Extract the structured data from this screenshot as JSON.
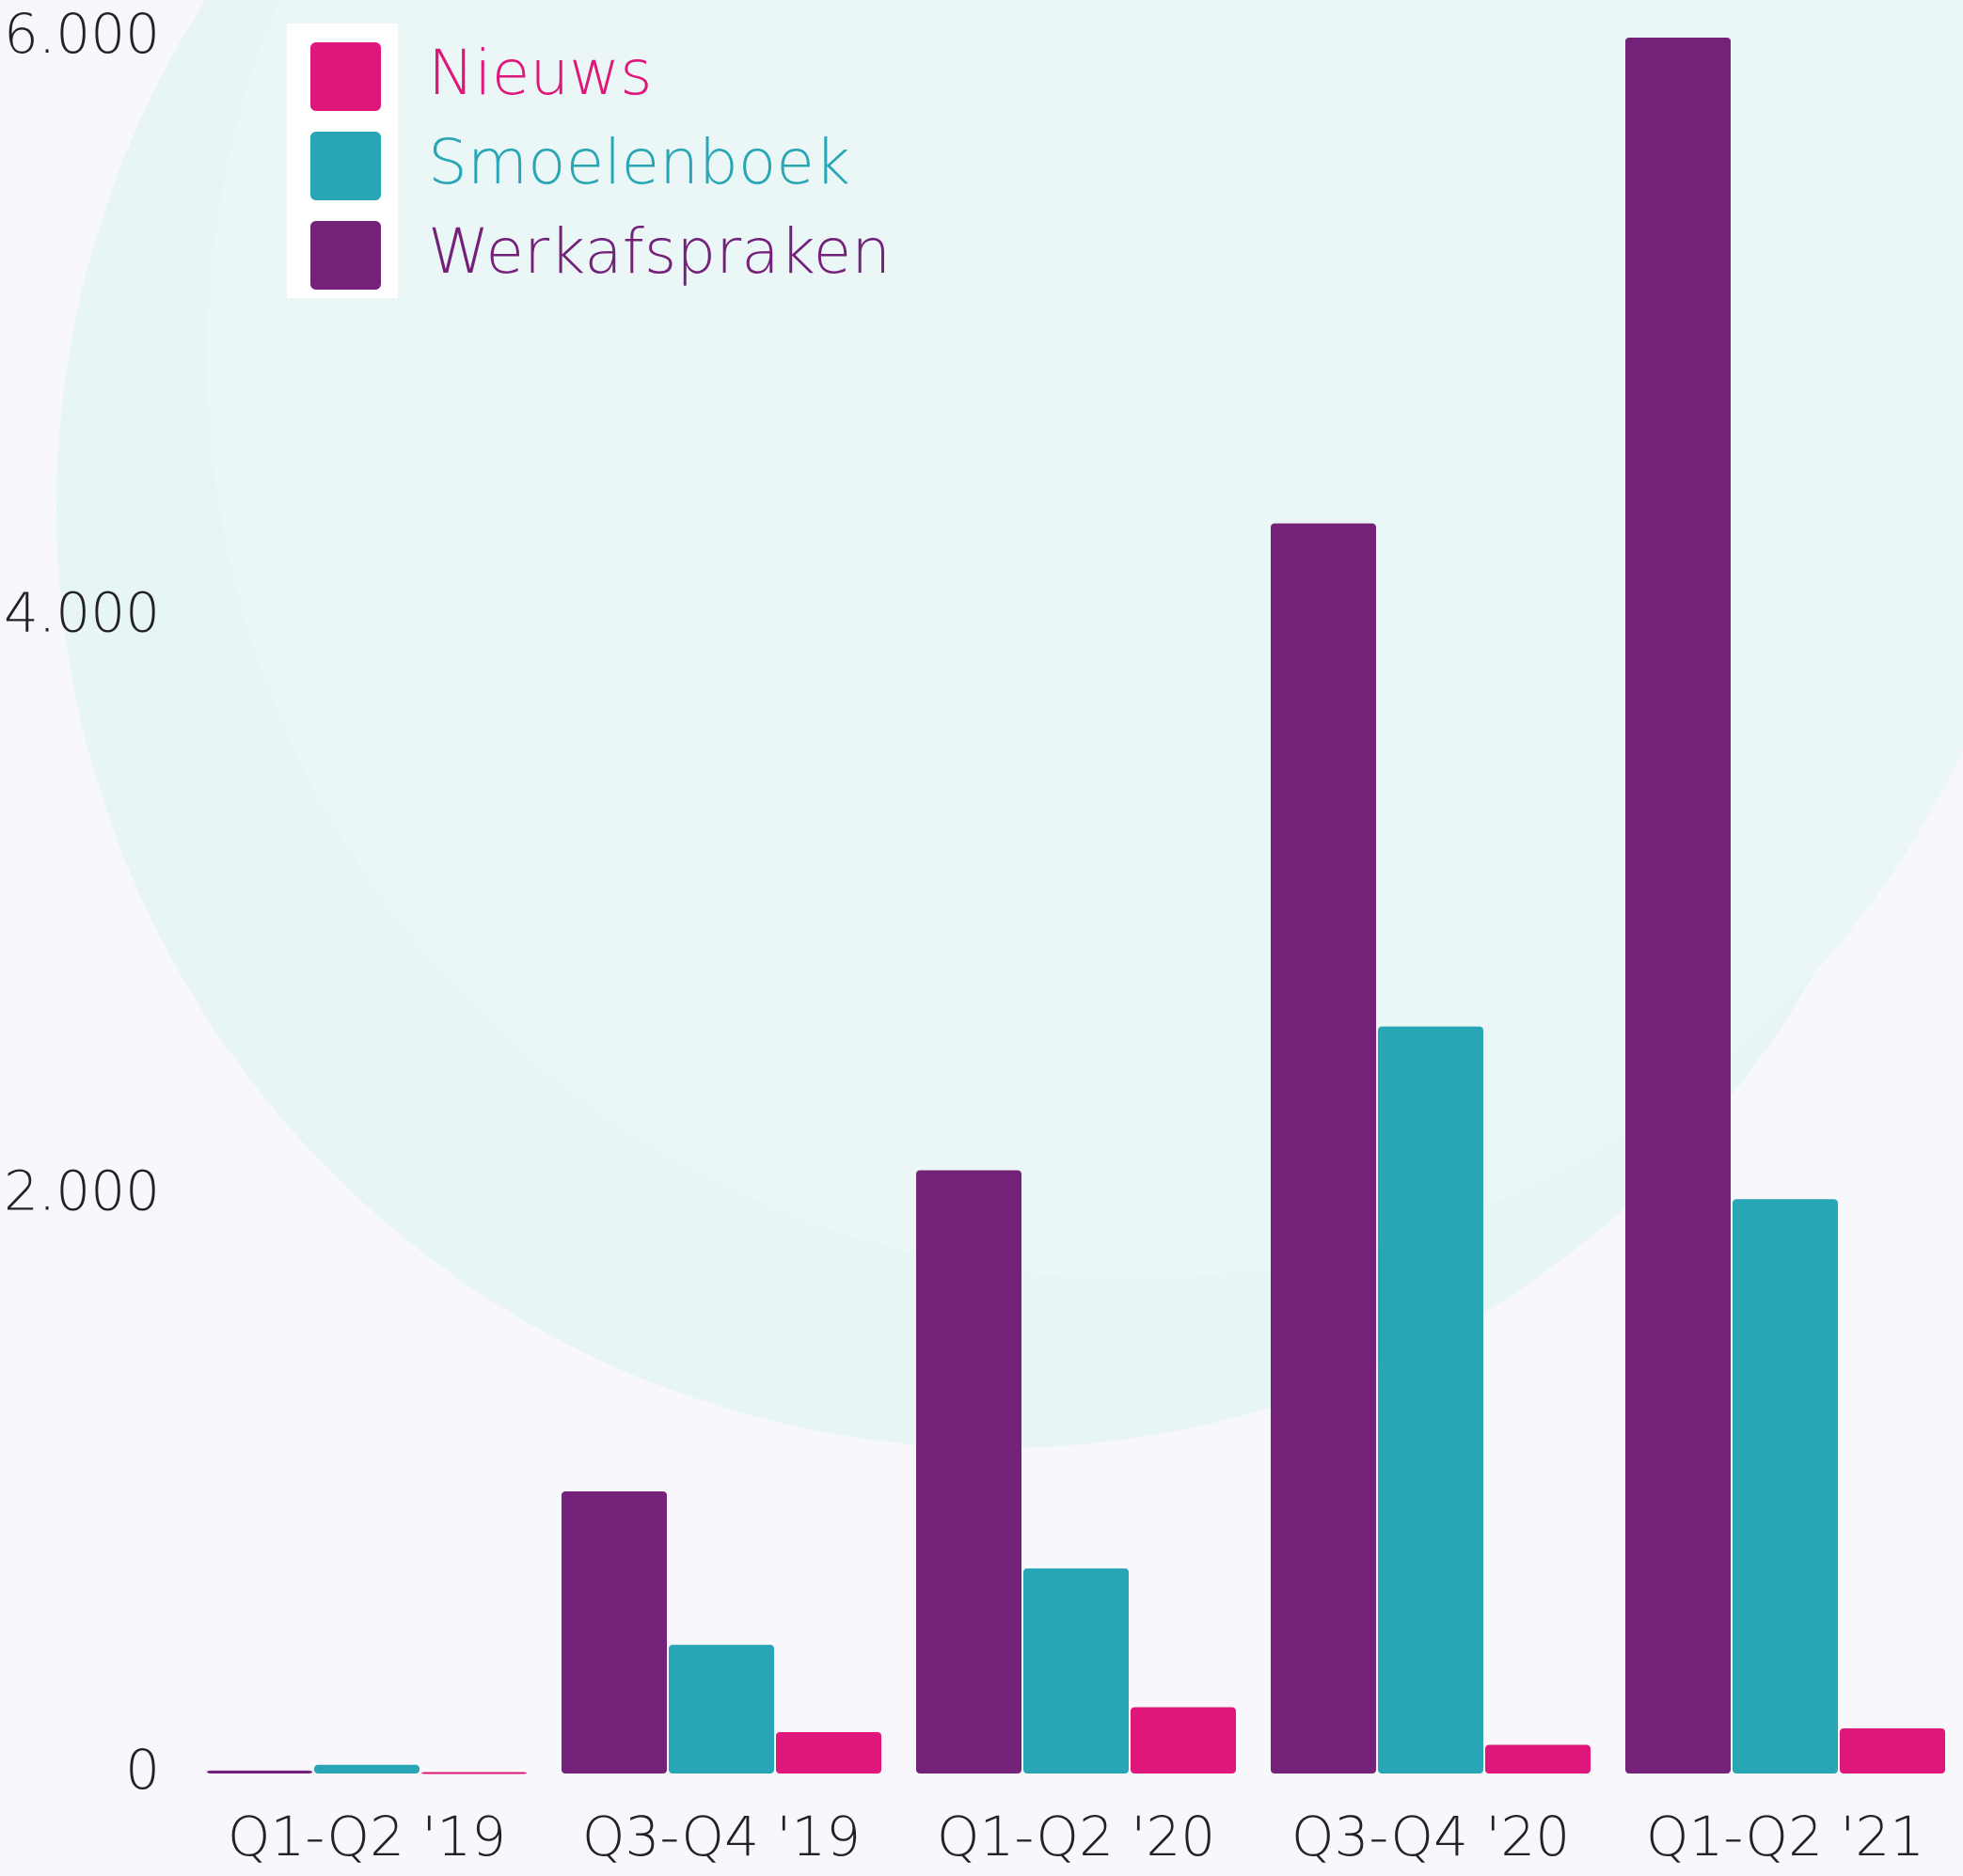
{
  "chart_data": {
    "type": "bar",
    "categories": [
      "Q1-Q2 '19",
      "Q3-Q4 '19",
      "Q1-Q2 '20",
      "Q3-Q4 '20",
      "Q1-Q2 '21"
    ],
    "series": [
      {
        "name": "Nieuws",
        "color": "#e0177a",
        "values": [
          5,
          143,
          229,
          99,
          156
        ]
      },
      {
        "name": "Smoelenboek",
        "color": "#28a6b6",
        "values": [
          30,
          445,
          709,
          2582,
          1985
        ]
      },
      {
        "name": "Werkafspraken",
        "color": "#74217a",
        "values": [
          10,
          975,
          2085,
          4321,
          6000
        ]
      }
    ],
    "ylim": [
      0,
      6000
    ],
    "yticks": [
      0,
      {
        "value": 2000,
        "label": "2.000"
      },
      {
        "value": 4000,
        "label": "4.000"
      },
      {
        "value": 6000,
        "label": "6.000"
      }
    ],
    "legend": "top-left",
    "grid": false
  }
}
